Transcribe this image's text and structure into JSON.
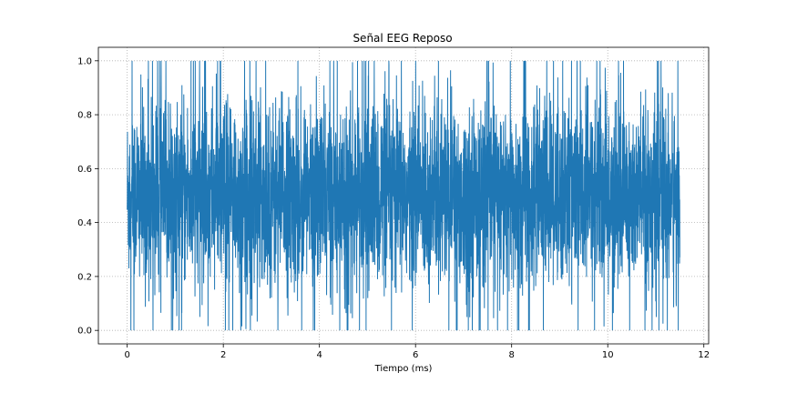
{
  "chart_data": {
    "type": "line",
    "title": "Señal EEG Reposo",
    "xlabel": "Tiempo (ms)",
    "ylabel": "",
    "xlim": [
      -0.6,
      12.1
    ],
    "ylim": [
      -0.05,
      1.05
    ],
    "xticks": [
      0,
      2,
      4,
      6,
      8,
      10,
      12
    ],
    "yticks": [
      0.0,
      0.2,
      0.4,
      0.6,
      0.8,
      1.0
    ],
    "xtick_labels": [
      "0",
      "2",
      "4",
      "6",
      "8",
      "10",
      "12"
    ],
    "ytick_labels": [
      "0.0",
      "0.2",
      "0.4",
      "0.6",
      "0.8",
      "1.0"
    ],
    "grid": true,
    "legend": "none",
    "series": [
      {
        "color": "#1f77b4",
        "x_range": [
          0,
          11.5
        ],
        "value_range": [
          0.0,
          1.0
        ],
        "dense_band": [
          0.2,
          0.85
        ],
        "baseline": 0.5
      }
    ]
  }
}
